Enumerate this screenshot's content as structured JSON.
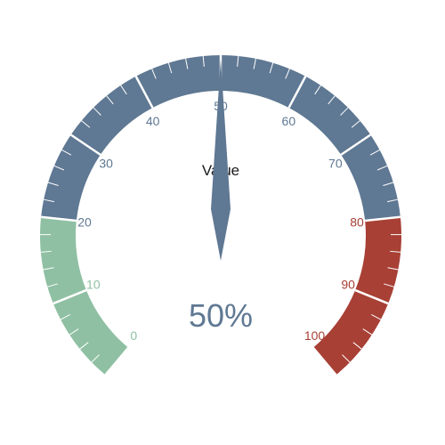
{
  "chart_data": {
    "type": "gauge",
    "title": "Value",
    "value": 50,
    "value_display": "50%",
    "min": 0,
    "max": 100,
    "major_ticks": [
      0,
      10,
      20,
      30,
      40,
      50,
      60,
      70,
      80,
      90,
      100
    ],
    "tick_labels": [
      "0",
      "10",
      "20",
      "30",
      "40",
      "50",
      "60",
      "70",
      "80",
      "90",
      "100"
    ],
    "minor_ticks_per_major": 5,
    "bands": [
      {
        "from": 0,
        "to": 20,
        "color": "#8fc0a3"
      },
      {
        "from": 20,
        "to": 80,
        "color": "#5f7893"
      },
      {
        "from": 80,
        "to": 100,
        "color": "#a84035"
      }
    ],
    "needle_color": "#5f7893",
    "value_color": "#5f7893",
    "title_color": "#1a1a1a"
  }
}
